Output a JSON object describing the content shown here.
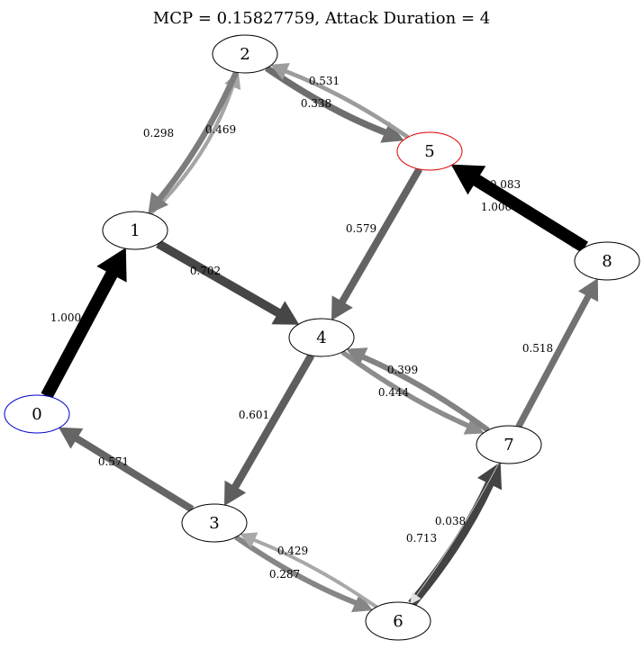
{
  "title": "MCP = 0.15827759, Attack Duration = 4",
  "nodes": [
    {
      "id": "0",
      "label": "0",
      "outline": "#0000cc"
    },
    {
      "id": "1",
      "label": "1",
      "outline": "#000000"
    },
    {
      "id": "2",
      "label": "2",
      "outline": "#000000"
    },
    {
      "id": "3",
      "label": "3",
      "outline": "#000000"
    },
    {
      "id": "4",
      "label": "4",
      "outline": "#000000"
    },
    {
      "id": "5",
      "label": "5",
      "outline": "#dd0000"
    },
    {
      "id": "6",
      "label": "6",
      "outline": "#000000"
    },
    {
      "id": "7",
      "label": "7",
      "outline": "#000000"
    },
    {
      "id": "8",
      "label": "8",
      "outline": "#000000"
    }
  ],
  "edges": [
    {
      "from": "0",
      "to": "1",
      "label": "1.000",
      "weight": 1.0
    },
    {
      "from": "1",
      "to": "2",
      "label": "0.298",
      "weight": 0.298
    },
    {
      "from": "2",
      "to": "1",
      "label": "0.469",
      "weight": 0.469
    },
    {
      "from": "1",
      "to": "4",
      "label": "0.702",
      "weight": 0.702
    },
    {
      "from": "2",
      "to": "5",
      "label": "0.531",
      "weight": 0.531
    },
    {
      "from": "5",
      "to": "2",
      "label": "0.338",
      "weight": 0.338
    },
    {
      "from": "5",
      "to": "4",
      "label": "0.579",
      "weight": 0.579
    },
    {
      "from": "5",
      "to": "8",
      "label": "0.083",
      "weight": 0.083
    },
    {
      "from": "8",
      "to": "5",
      "label": "1.000",
      "weight": 1.0
    },
    {
      "from": "4",
      "to": "3",
      "label": "0.601",
      "weight": 0.601
    },
    {
      "from": "4",
      "to": "7",
      "label": "0.399",
      "weight": 0.399
    },
    {
      "from": "7",
      "to": "4",
      "label": "0.444",
      "weight": 0.444
    },
    {
      "from": "7",
      "to": "8",
      "label": "0.518",
      "weight": 0.518
    },
    {
      "from": "3",
      "to": "0",
      "label": "0.571",
      "weight": 0.571
    },
    {
      "from": "3",
      "to": "6",
      "label": "0.429",
      "weight": 0.429
    },
    {
      "from": "6",
      "to": "3",
      "label": "0.287",
      "weight": 0.287
    },
    {
      "from": "6",
      "to": "7",
      "label": "0.713",
      "weight": 0.713
    },
    {
      "from": "7",
      "to": "6",
      "label": "0.038",
      "weight": 0.038
    }
  ]
}
